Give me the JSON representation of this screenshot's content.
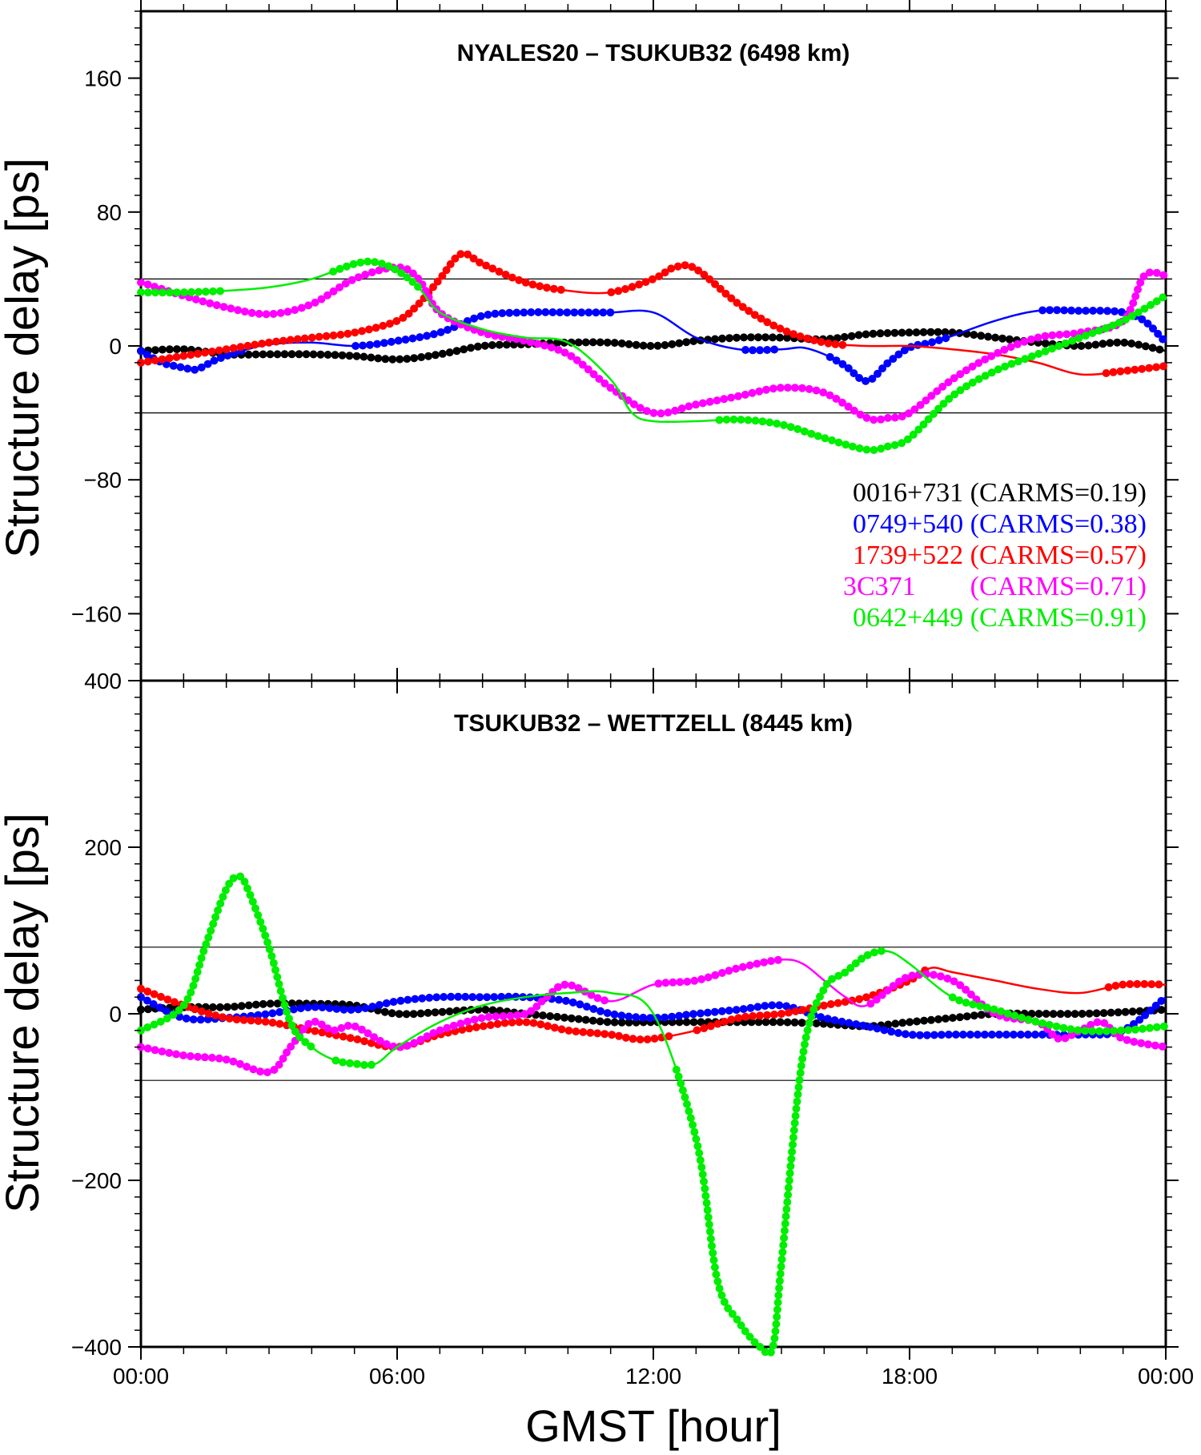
{
  "chart_data": [
    {
      "type": "line",
      "title": "NYALES20 – TSUKUB32 (6498 km)",
      "xlabel": "",
      "ylabel": "Structure delay [ps]",
      "x_unit": "hour",
      "xlim": [
        0,
        24
      ],
      "ylim": [
        -160,
        160
      ],
      "y_ticks": [
        160,
        80,
        0,
        -80,
        -160
      ],
      "y_tick_labels": [
        "160",
        "80",
        "0",
        "−80",
        "−160"
      ],
      "reference_lines": [
        40,
        -40
      ],
      "legend": [
        {
          "text": "0016+731 (CARMS=0.19)",
          "color": "#000000"
        },
        {
          "text": "0749+540 (CARMS=0.38)",
          "color": "#0000ff"
        },
        {
          "text": "1739+522 (CARMS=0.57)",
          "color": "#ff0000"
        },
        {
          "text": "3C371        (CARMS=0.71)",
          "color": "#ff00ff"
        },
        {
          "text": "0642+449 (CARMS=0.91)",
          "color": "#00ee00"
        }
      ],
      "legend_position": "bottom-right",
      "series": [
        {
          "color": "#000000",
          "x": [
            0,
            1,
            2,
            3,
            4,
            5,
            6,
            7,
            8,
            9,
            10,
            11,
            12,
            13,
            14,
            15,
            16,
            17,
            18,
            19,
            20,
            21,
            22,
            23,
            24
          ],
          "y": [
            -3,
            -2,
            -5,
            -5,
            -5,
            -6,
            -8,
            -5,
            0,
            1,
            2,
            2,
            0,
            3,
            5,
            5,
            4,
            7,
            8,
            8,
            5,
            2,
            0,
            2,
            -3
          ],
          "dotted": [
            [
              0,
              24
            ]
          ]
        },
        {
          "color": "#0000ff",
          "x": [
            0,
            0.5,
            1,
            1.3,
            1.7,
            2,
            2.5,
            3,
            4,
            5,
            6,
            7,
            8,
            9,
            10,
            11,
            12,
            13,
            14,
            15,
            15.5,
            16,
            16.5,
            17,
            17.5,
            18,
            18.5,
            19,
            20,
            21,
            22,
            22.5,
            23,
            23.5,
            24
          ],
          "y": [
            -3,
            -10,
            -13,
            -14,
            -9,
            -6,
            -2,
            1,
            2,
            0,
            3,
            8,
            18,
            20,
            20,
            20,
            20,
            5,
            -2,
            -2,
            -1,
            -5,
            -12,
            -21,
            -10,
            -1,
            2,
            6,
            15,
            21,
            21,
            21,
            20,
            15,
            2
          ],
          "dotted": [
            [
              0,
              2.5
            ],
            [
              5,
              11
            ],
            [
              14,
              15
            ],
            [
              16,
              19
            ],
            [
              21,
              24
            ]
          ]
        },
        {
          "color": "#ff0000",
          "x": [
            0,
            1,
            2,
            3,
            4,
            5,
            6,
            6.5,
            7,
            7.5,
            8,
            9,
            10,
            11,
            12,
            12.5,
            13,
            14,
            15,
            16,
            17,
            18,
            19,
            20,
            21,
            22,
            23,
            24
          ],
          "y": [
            -10,
            -6,
            -2,
            2,
            5,
            8,
            15,
            25,
            40,
            55,
            49,
            38,
            33,
            32,
            40,
            47,
            46,
            25,
            10,
            2,
            0,
            0,
            -2,
            -5,
            -10,
            -17,
            -15,
            -12
          ],
          "dotted": [
            [
              0,
              10
            ],
            [
              11,
              16.5
            ],
            [
              22.5,
              24
            ]
          ]
        },
        {
          "color": "#ff00ff",
          "x": [
            0,
            1,
            2,
            3,
            4,
            5,
            6,
            6.5,
            7,
            8,
            9,
            10,
            11,
            12,
            13,
            14,
            15,
            16,
            17,
            17.5,
            18,
            19,
            20,
            21,
            22,
            23,
            23.5,
            24
          ],
          "y": [
            38,
            30,
            23,
            19,
            25,
            40,
            47,
            40,
            20,
            8,
            3,
            -5,
            -25,
            -40,
            -35,
            -30,
            -25,
            -28,
            -43,
            -43,
            -40,
            -20,
            -5,
            5,
            8,
            15,
            42,
            42
          ],
          "dotted": [
            [
              0,
              24
            ]
          ]
        },
        {
          "color": "#00ee00",
          "x": [
            0,
            1,
            2,
            3,
            4,
            5,
            5.5,
            6,
            6.5,
            7,
            8,
            9,
            10,
            11,
            11.5,
            12,
            13,
            14,
            15,
            16,
            17,
            17.5,
            18,
            19,
            20,
            21,
            22,
            23,
            24
          ],
          "y": [
            32,
            32,
            33,
            35,
            40,
            49,
            50,
            45,
            35,
            20,
            10,
            5,
            2,
            -20,
            -40,
            -45,
            -45,
            -44,
            -47,
            -55,
            -62,
            -60,
            -55,
            -30,
            -15,
            -5,
            5,
            15,
            30
          ],
          "dotted": [
            [
              0,
              2
            ],
            [
              4.5,
              6.5
            ],
            [
              13.5,
              24
            ]
          ]
        }
      ]
    },
    {
      "type": "line",
      "title": "TSUKUB32 – WETTZELL (8445 km)",
      "xlabel": "GMST [hour]",
      "ylabel": "Structure delay [ps]",
      "x_unit": "hour",
      "xlim": [
        0,
        24
      ],
      "ylim": [
        -400,
        400
      ],
      "y_ticks": [
        400,
        200,
        0,
        -200,
        -400
      ],
      "y_tick_labels": [
        "400",
        "200",
        "0",
        "−200",
        "−400"
      ],
      "x_ticks": [
        0,
        6,
        12,
        18,
        24
      ],
      "x_tick_labels": [
        "00:00",
        "06:00",
        "12:00",
        "18:00",
        "00:00"
      ],
      "reference_lines": [
        80,
        -80
      ],
      "series": [
        {
          "color": "#000000",
          "x": [
            0,
            1,
            2,
            3,
            4,
            5,
            6,
            7,
            8,
            9,
            10,
            11,
            12,
            13,
            14,
            15,
            16,
            17,
            18,
            19,
            20,
            21,
            22,
            23,
            24
          ],
          "y": [
            5,
            8,
            8,
            12,
            12,
            10,
            0,
            2,
            5,
            0,
            -5,
            -10,
            -10,
            -10,
            -10,
            -10,
            -12,
            -15,
            -10,
            -5,
            0,
            0,
            0,
            2,
            5
          ],
          "dotted": [
            [
              0,
              24
            ]
          ]
        },
        {
          "color": "#0000ff",
          "x": [
            0,
            1,
            2,
            3,
            4,
            5,
            6,
            7,
            8,
            9,
            10,
            11,
            12,
            13,
            14,
            15,
            16,
            17,
            18,
            19,
            20,
            21,
            22,
            23,
            24
          ],
          "y": [
            20,
            -5,
            -5,
            0,
            8,
            5,
            15,
            20,
            20,
            20,
            15,
            0,
            -5,
            0,
            5,
            10,
            -5,
            -15,
            -25,
            -25,
            -25,
            -25,
            -25,
            -20,
            20
          ],
          "dotted": [
            [
              0,
              24
            ]
          ]
        },
        {
          "color": "#ff0000",
          "x": [
            0,
            1,
            2,
            3,
            4,
            5,
            6,
            7,
            8,
            9,
            10,
            11,
            11.5,
            12,
            13,
            14,
            15,
            16,
            17,
            18,
            18.5,
            19,
            20,
            21,
            22,
            23,
            24
          ],
          "y": [
            30,
            10,
            -5,
            -10,
            -20,
            -30,
            -40,
            -25,
            -15,
            -10,
            -20,
            -25,
            -30,
            -30,
            -20,
            -5,
            0,
            10,
            20,
            40,
            55,
            50,
            40,
            30,
            25,
            35,
            35
          ],
          "dotted": [
            [
              0,
              12.5
            ],
            [
              13,
              18.5
            ],
            [
              22.5,
              24
            ]
          ]
        },
        {
          "color": "#ff00ff",
          "x": [
            0,
            1,
            2,
            3,
            3.5,
            4,
            4.5,
            5,
            6,
            7,
            8,
            9,
            9.5,
            10,
            11,
            12,
            13,
            14,
            15,
            15.5,
            16,
            16.5,
            17,
            18,
            19,
            20,
            21,
            21.5,
            22,
            22.5,
            23,
            24
          ],
          "y": [
            -40,
            -50,
            -55,
            -70,
            -40,
            -10,
            -20,
            -15,
            -40,
            -20,
            -5,
            0,
            20,
            35,
            15,
            35,
            40,
            55,
            65,
            60,
            40,
            20,
            10,
            45,
            40,
            0,
            -10,
            -30,
            -20,
            -10,
            -30,
            -40
          ],
          "dotted": [
            [
              0,
              11
            ],
            [
              12,
              15
            ],
            [
              17,
              24
            ]
          ]
        },
        {
          "color": "#00ee00",
          "x": [
            0,
            1,
            1.5,
            2,
            2.3,
            2.5,
            3,
            3.5,
            4,
            4.5,
            5,
            5.5,
            6,
            7,
            8,
            9,
            10,
            11,
            12,
            13,
            13.5,
            14,
            14.5,
            14.8,
            15,
            15.5,
            16,
            16.5,
            17,
            17.5,
            18,
            19,
            20,
            21,
            22,
            23,
            24
          ],
          "y": [
            -20,
            10,
            80,
            150,
            165,
            150,
            80,
            -10,
            -40,
            -55,
            -60,
            -60,
            -40,
            -10,
            10,
            20,
            25,
            25,
            0,
            -150,
            -320,
            -370,
            -400,
            -400,
            -300,
            -50,
            30,
            50,
            70,
            75,
            60,
            20,
            5,
            -10,
            -20,
            -20,
            -15
          ],
          "dotted": [
            [
              0,
              4
            ],
            [
              4.5,
              5.5
            ],
            [
              12.5,
              16
            ],
            [
              16,
              17.5
            ],
            [
              19,
              24
            ]
          ]
        }
      ]
    }
  ]
}
